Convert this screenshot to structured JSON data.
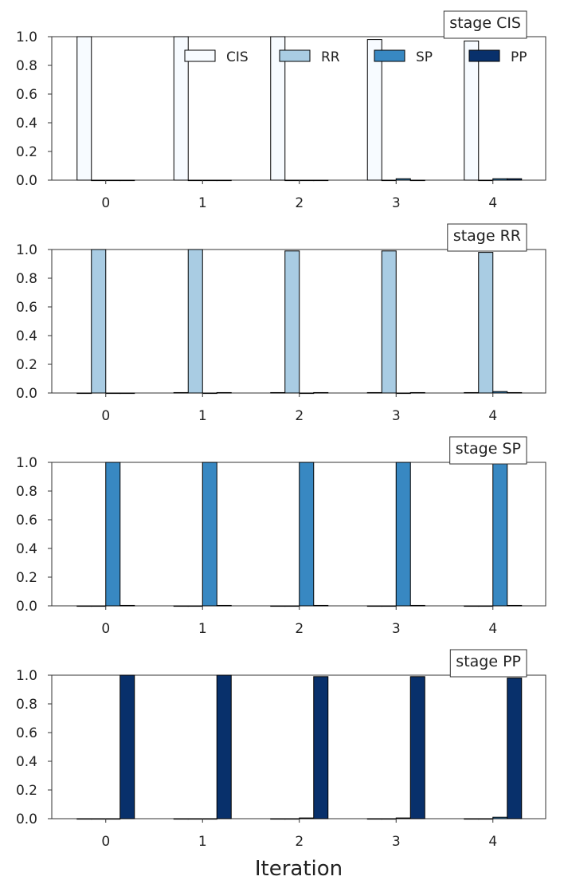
{
  "chart_data": {
    "type": "bar",
    "xlabel": "Iteration",
    "categories": [
      "0",
      "1",
      "2",
      "3",
      "4"
    ],
    "ylim": [
      0,
      1
    ],
    "yticks": [
      "0.0",
      "0.2",
      "0.4",
      "0.6",
      "0.8",
      "1.0"
    ],
    "series_colors": {
      "CIS": "#f7fbff",
      "RR": "#a9cce3",
      "SP": "#3888c2",
      "PP": "#08306b"
    },
    "legend": {
      "placement": "top",
      "entries": [
        "CIS",
        "RR",
        "SP",
        "PP"
      ]
    },
    "panels": [
      {
        "stage_label": "stage CIS",
        "series": [
          {
            "name": "CIS",
            "values": [
              1.0,
              1.0,
              1.0,
              0.98,
              0.97
            ]
          },
          {
            "name": "RR",
            "values": [
              0.0,
              0.0,
              0.0,
              0.0,
              0.0
            ]
          },
          {
            "name": "SP",
            "values": [
              0.0,
              0.0,
              0.0,
              0.01,
              0.01
            ]
          },
          {
            "name": "PP",
            "values": [
              0.0,
              0.0,
              0.0,
              0.0,
              0.01
            ]
          }
        ]
      },
      {
        "stage_label": "stage RR",
        "series": [
          {
            "name": "CIS",
            "values": [
              0.0,
              0.003,
              0.003,
              0.003,
              0.003
            ]
          },
          {
            "name": "RR",
            "values": [
              1.0,
              1.0,
              0.99,
              0.99,
              0.98
            ]
          },
          {
            "name": "SP",
            "values": [
              0.0,
              0.0,
              0.0,
              0.0,
              0.01
            ]
          },
          {
            "name": "PP",
            "values": [
              0.0,
              0.003,
              0.003,
              0.003,
              0.003
            ]
          }
        ]
      },
      {
        "stage_label": "stage SP",
        "series": [
          {
            "name": "CIS",
            "values": [
              0.0,
              0.0,
              0.0,
              0.0,
              0.0
            ]
          },
          {
            "name": "RR",
            "values": [
              0.0,
              0.0,
              0.0,
              0.0,
              0.0
            ]
          },
          {
            "name": "SP",
            "values": [
              1.0,
              1.0,
              1.0,
              1.0,
              1.0
            ]
          },
          {
            "name": "PP",
            "values": [
              0.003,
              0.003,
              0.003,
              0.003,
              0.003
            ]
          }
        ]
      },
      {
        "stage_label": "stage PP",
        "series": [
          {
            "name": "CIS",
            "values": [
              0.0,
              0.0,
              0.0,
              0.0,
              0.0
            ]
          },
          {
            "name": "RR",
            "values": [
              0.0,
              0.0,
              0.0,
              0.0,
              0.0
            ]
          },
          {
            "name": "SP",
            "values": [
              0.0,
              0.0,
              0.005,
              0.005,
              0.01
            ]
          },
          {
            "name": "PP",
            "values": [
              1.0,
              1.0,
              0.99,
              0.99,
              0.98
            ]
          }
        ]
      }
    ]
  }
}
